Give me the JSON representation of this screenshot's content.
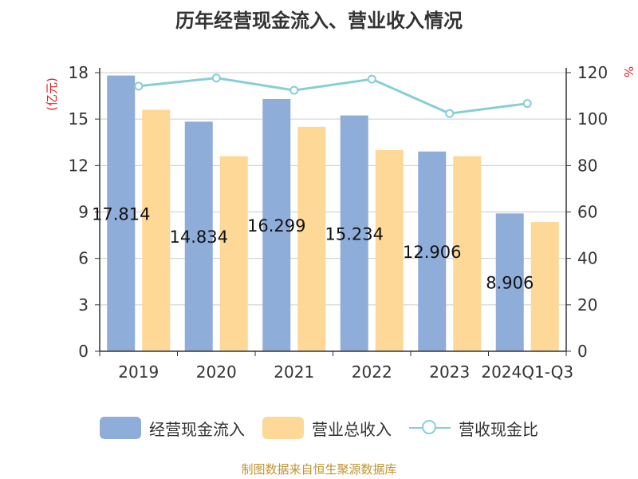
{
  "title": "历年经营现金流入、营业收入情况",
  "source": "制图数据来自恒生聚源数据库",
  "colors": {
    "cash_inflow": "#8eadd9",
    "revenue": "#fdd897",
    "ratio_line": "#86cfd6",
    "axis_unit": "#e02020",
    "grid": "#cccccc",
    "axis": "#333333"
  },
  "chart_data": {
    "type": "bar",
    "title": "历年经营现金流入、营业收入情况",
    "categories": [
      "2019",
      "2020",
      "2021",
      "2022",
      "2023",
      "2024Q1-Q3"
    ],
    "left_axis": {
      "unit": "(亿元)",
      "ylim": [
        0,
        18
      ],
      "ticks": [
        0,
        3,
        6,
        9,
        12,
        15,
        18
      ]
    },
    "right_axis": {
      "unit": "%",
      "ylim": [
        0,
        120
      ],
      "ticks": [
        0,
        20,
        40,
        60,
        80,
        100,
        120
      ]
    },
    "series": [
      {
        "name": "经营现金流入",
        "kind": "bar",
        "axis": "left",
        "values": [
          17.814,
          14.834,
          16.299,
          15.234,
          12.906,
          8.906
        ],
        "labels": [
          "17.814",
          "14.834",
          "16.299",
          "15.234",
          "12.906",
          "8.906"
        ]
      },
      {
        "name": "营业总收入",
        "kind": "bar",
        "axis": "left",
        "values": [
          15.6,
          12.6,
          14.5,
          13.0,
          12.6,
          8.35
        ]
      },
      {
        "name": "营收现金比",
        "kind": "line",
        "axis": "right",
        "values": [
          114.2,
          117.7,
          112.4,
          117.2,
          102.4,
          106.7
        ]
      }
    ],
    "grid": true,
    "legend_position": "bottom"
  }
}
